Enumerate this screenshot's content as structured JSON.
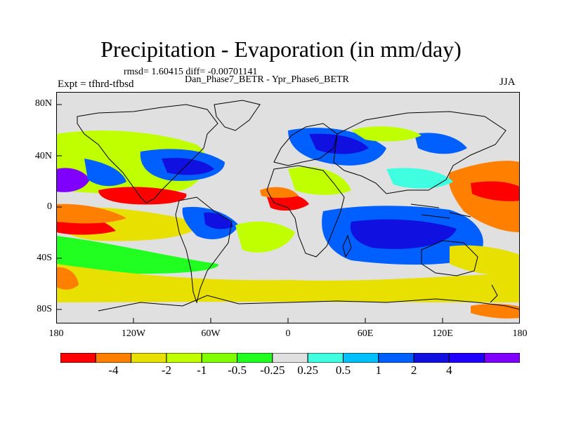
{
  "title": "Precipitation - Evaporation (in mm/day)",
  "stats_line": "rmsd= 1.60415 diff= -0.00701141",
  "experiment_label": "Expt = tfhrd-tfbsd",
  "difference_label": "Dan_Phase7_BETR - Ypr_Phase6_BETR",
  "season": "JJA",
  "lat_ticks": [
    "80N",
    "40N",
    "0",
    "40S",
    "80S"
  ],
  "lon_ticks": [
    "180",
    "120W",
    "60W",
    "0",
    "60E",
    "120E",
    "180"
  ],
  "colorbar": {
    "colors": [
      "#ff0000",
      "#ff8000",
      "#e8e000",
      "#c0ff00",
      "#80ff00",
      "#20ff20",
      "#e0e0e0",
      "#40ffe0",
      "#00c0ff",
      "#0060ff",
      "#1010e0",
      "#2000ff",
      "#8000ff"
    ],
    "labels": [
      "-4",
      "-2",
      "-1",
      "-0.5",
      "-0.25",
      "0.25",
      "0.5",
      "1",
      "2",
      "4"
    ]
  },
  "palette": {
    "neutral": "#e0e0e0",
    "red": "#ff0000",
    "orange": "#ff8000",
    "yellow": "#e8e000",
    "lightgreen": "#c0ff00",
    "green": "#20ff20",
    "cyan": "#40ffe0",
    "lightblue": "#00c0ff",
    "blue": "#0060ff",
    "darkblue": "#1010e0",
    "purple": "#8000ff"
  }
}
